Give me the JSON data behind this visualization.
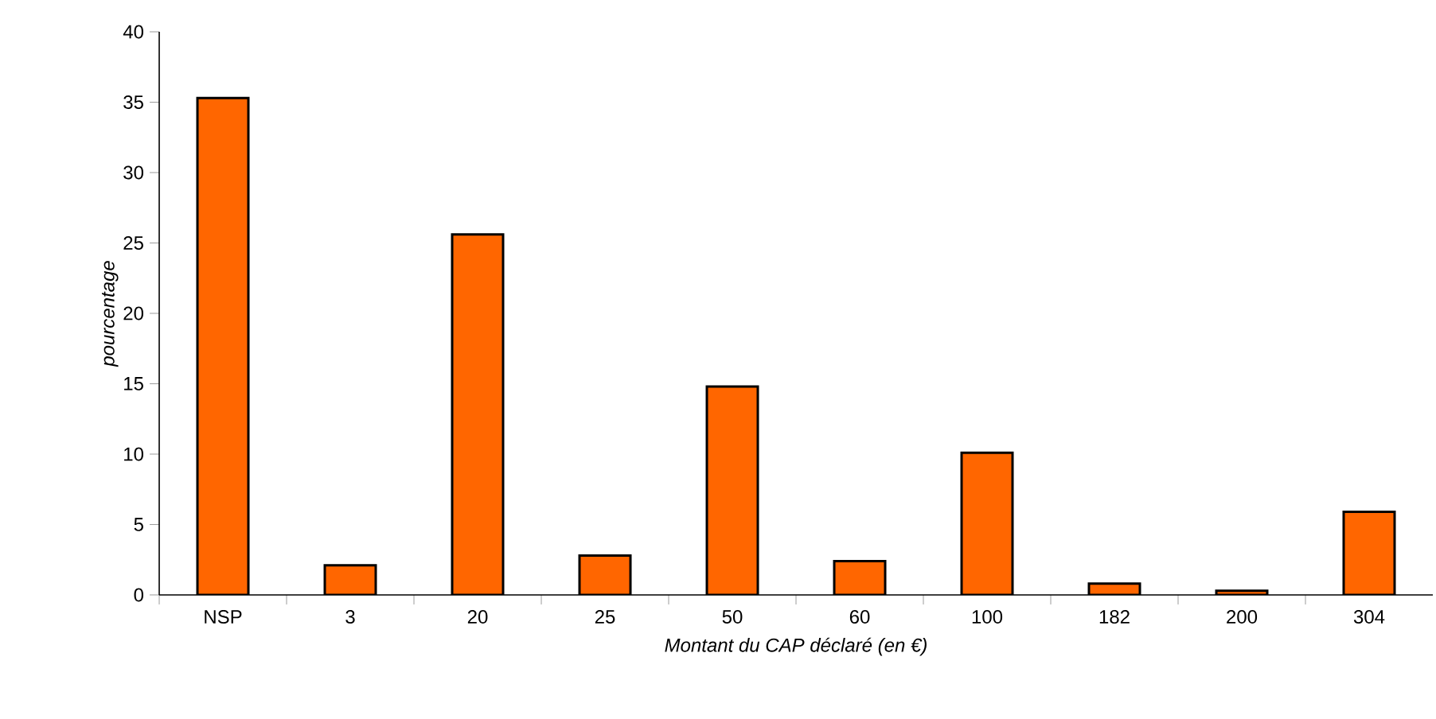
{
  "chart_data": {
    "type": "bar",
    "xlabel": "Montant du CAP déclaré (en €)",
    "ylabel": "pourcentage",
    "categories": [
      "NSP",
      "3",
      "20",
      "25",
      "50",
      "60",
      "100",
      "182",
      "200",
      "304"
    ],
    "values": [
      35.3,
      2.1,
      25.6,
      2.8,
      14.8,
      2.4,
      10.1,
      0.8,
      0.3,
      5.9
    ],
    "color": "#ff6600",
    "ylim": [
      0,
      40
    ],
    "yticks": [
      0,
      5,
      10,
      15,
      20,
      25,
      30,
      35,
      40
    ],
    "grid": false
  }
}
